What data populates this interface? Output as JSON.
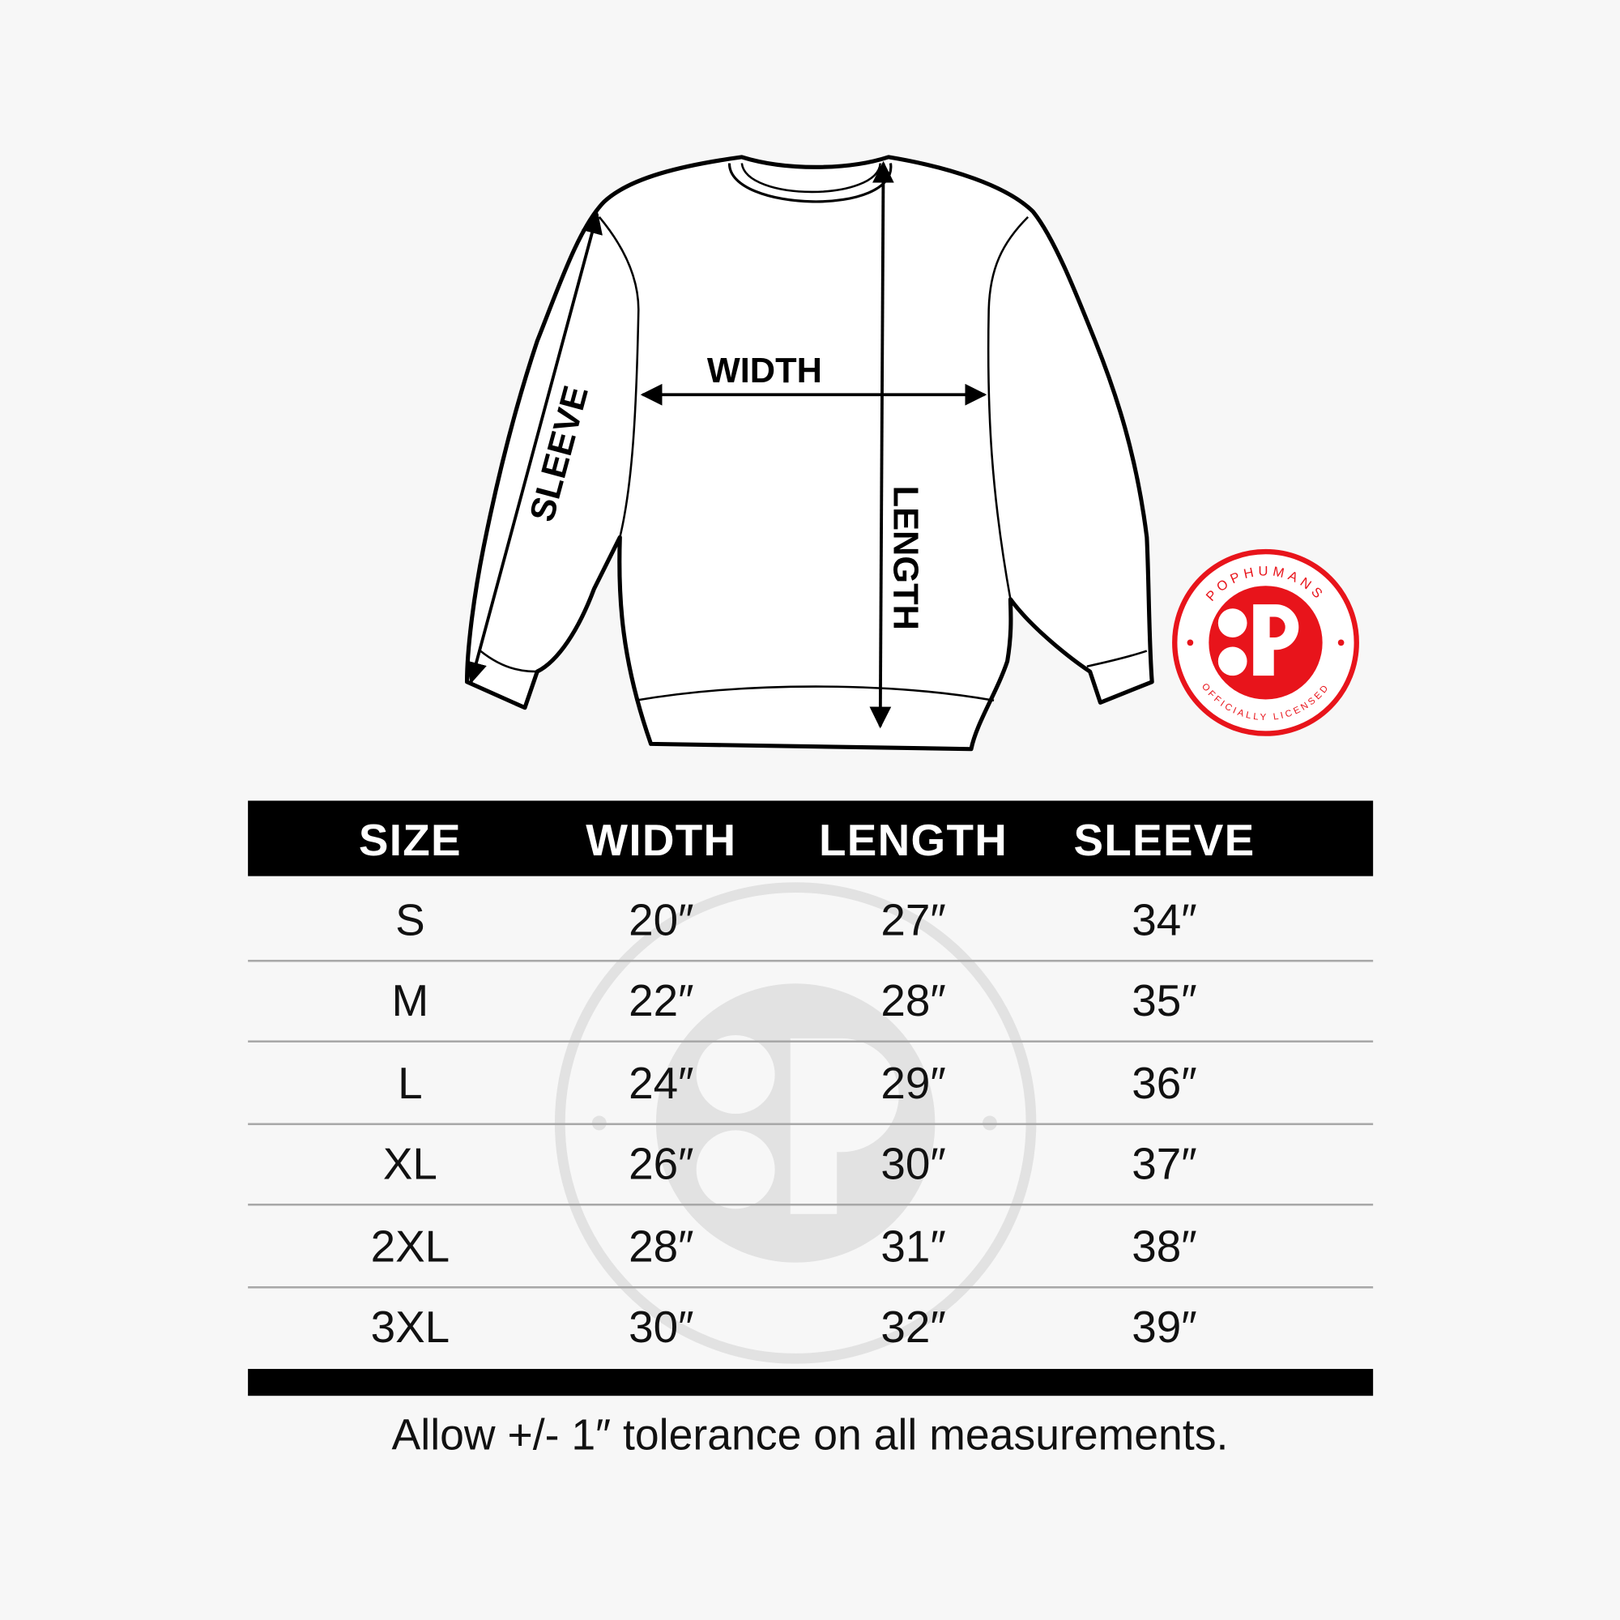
{
  "diagram": {
    "width_label": "WIDTH",
    "length_label": "LENGTH",
    "sleeve_label": "SLEEVE"
  },
  "logo": {
    "brand": "POPHUMANS",
    "tagline": "OFFICIALLY LICENSED",
    "color": "#e8141b"
  },
  "table": {
    "headers": [
      "SIZE",
      "WIDTH",
      "LENGTH",
      "SLEEVE"
    ],
    "rows": [
      [
        "S",
        "20″",
        "27″",
        "34″"
      ],
      [
        "M",
        "22″",
        "28″",
        "35″"
      ],
      [
        "L",
        "24″",
        "29″",
        "36″"
      ],
      [
        "XL",
        "26″",
        "30″",
        "37″"
      ],
      [
        "2XL",
        "28″",
        "31″",
        "38″"
      ],
      [
        "3XL",
        "30″",
        "32″",
        "39″"
      ]
    ]
  },
  "note": "Allow +/- 1″ tolerance on all measurements."
}
